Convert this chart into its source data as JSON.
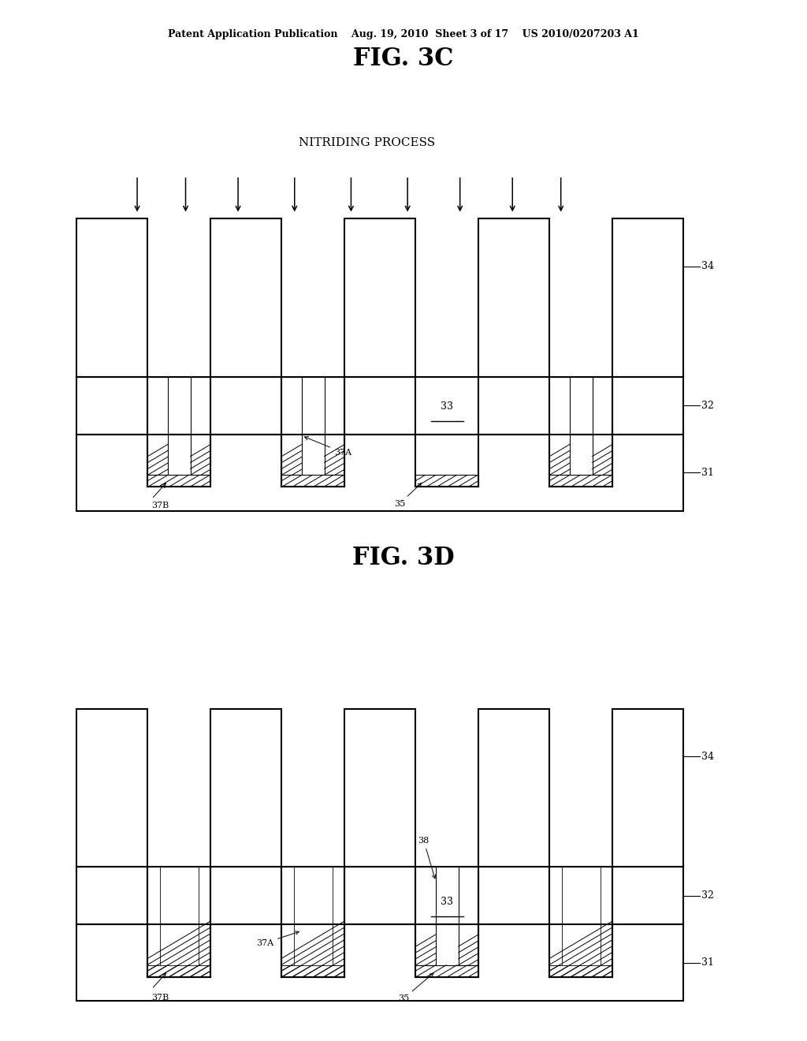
{
  "bg_color": "#ffffff",
  "header_text": "Patent Application Publication    Aug. 19, 2010  Sheet 3 of 17    US 2010/0207203 A1",
  "fig3c_title": "FIG. 3C",
  "fig3d_title": "FIG. 3D",
  "nitriding_text": "NITRIDING PROCESS"
}
